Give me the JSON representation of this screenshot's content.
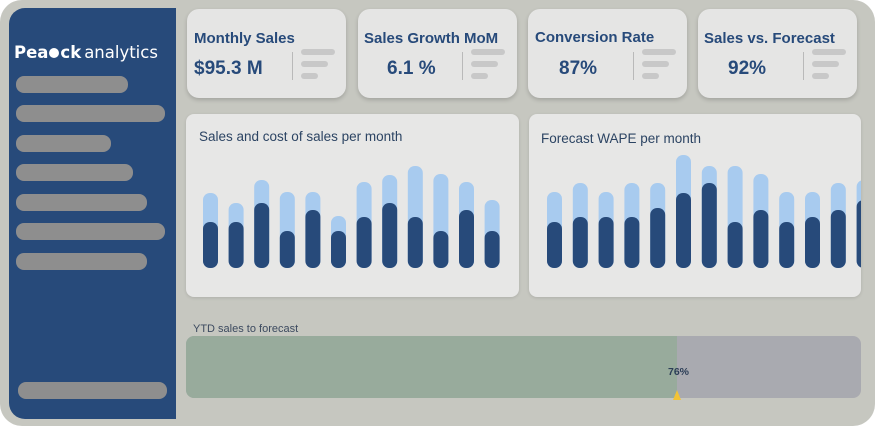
{
  "brand": {
    "name_start": "Pea",
    "name_end": "ck",
    "suffix": "analytics"
  },
  "sidebar": {
    "nav_items": [
      {
        "label": "",
        "width": 112,
        "top": 76
      },
      {
        "label": "",
        "width": 149,
        "top": 105
      },
      {
        "label": "",
        "width": 95,
        "top": 135
      },
      {
        "label": "",
        "width": 117,
        "top": 164
      },
      {
        "label": "",
        "width": 131,
        "top": 194
      },
      {
        "label": "",
        "width": 149,
        "top": 223
      },
      {
        "label": "",
        "width": 131,
        "top": 253
      }
    ],
    "footer_item": {
      "label": ""
    }
  },
  "kpis": [
    {
      "title": "Monthly Sales",
      "value": "$95.3 M"
    },
    {
      "title": "Sales Growth MoM",
      "value": "6.1 %"
    },
    {
      "title": "Conversion Rate",
      "value": "87%"
    },
    {
      "title": "Sales vs.  Forecast",
      "value": "92%"
    }
  ],
  "colors": {
    "primary": "#274a7a",
    "bar_light": "#a8cbef",
    "bar_dark": "#274a7a",
    "progress_fill": "#98ab9c",
    "progress_track": "#a9aab0",
    "marker": "#f2c335"
  },
  "charts": {
    "sales_cost": {
      "title": "Sales and cost of sales per month",
      "type": "bar",
      "series": [
        {
          "values": [
            75,
            65,
            88,
            76,
            76,
            52,
            86,
            93,
            102,
            94,
            86,
            68
          ]
        },
        {
          "values": [
            46,
            46,
            65,
            37,
            58,
            37,
            51,
            65,
            51,
            37,
            58,
            37
          ]
        }
      ]
    },
    "wape": {
      "title": "Forecast WAPE per month",
      "type": "bar",
      "series": [
        {
          "values": [
            76,
            85,
            76,
            85,
            85,
            113,
            102,
            102,
            94,
            76,
            76,
            85,
            88
          ]
        },
        {
          "values": [
            46,
            51,
            51,
            51,
            60,
            75,
            85,
            46,
            58,
            46,
            51,
            58,
            68
          ]
        }
      ]
    }
  },
  "ytd": {
    "label": "YTD sales to forecast",
    "percent": 76,
    "percent_label": "76%"
  }
}
